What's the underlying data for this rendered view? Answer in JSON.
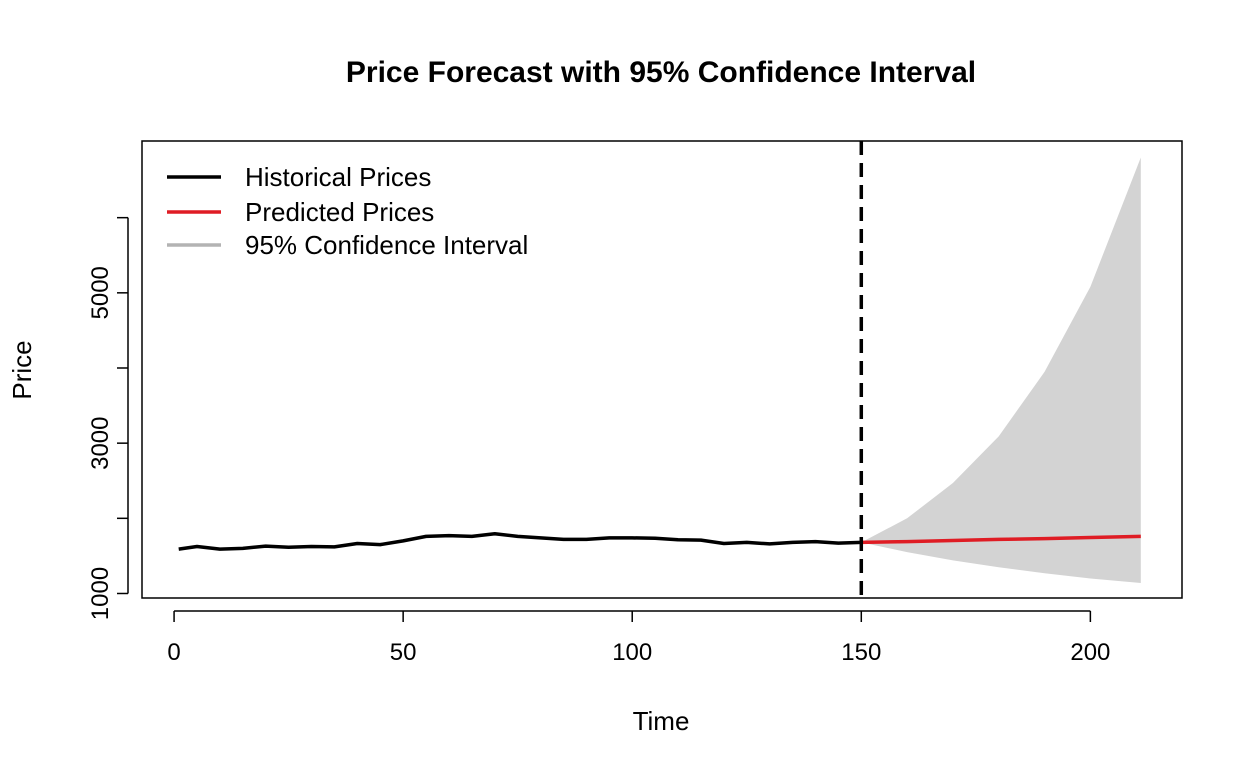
{
  "chart_data": {
    "type": "line",
    "title": "Price Forecast with 95% Confidence Interval",
    "xlabel": "Time",
    "ylabel": "Price",
    "xlim": [
      -7,
      220
    ],
    "ylim": [
      940,
      7020
    ],
    "x_ticks": [
      0,
      50,
      100,
      150,
      200
    ],
    "y_ticks": [
      1000,
      2000,
      3000,
      4000,
      5000,
      6000
    ],
    "y_tick_labels": [
      "1000",
      "",
      "3000",
      "",
      "5000",
      ""
    ],
    "forecast_start": 150,
    "legend": {
      "position": "top-left",
      "entries": [
        {
          "label": "Historical Prices",
          "color": "#000000"
        },
        {
          "label": "Predicted Prices",
          "color": "#DF1C24"
        },
        {
          "label": "95% Confidence Interval",
          "color": "#B3B3B3"
        }
      ]
    },
    "series": [
      {
        "name": "Historical Prices",
        "color": "#000000",
        "x": [
          1,
          5,
          10,
          15,
          20,
          25,
          30,
          35,
          40,
          45,
          50,
          55,
          60,
          65,
          70,
          75,
          80,
          85,
          90,
          95,
          100,
          105,
          110,
          115,
          120,
          125,
          130,
          135,
          140,
          145,
          150
        ],
        "y": [
          1590,
          1625,
          1590,
          1600,
          1630,
          1615,
          1625,
          1620,
          1665,
          1650,
          1700,
          1760,
          1770,
          1760,
          1795,
          1760,
          1740,
          1720,
          1720,
          1740,
          1740,
          1735,
          1715,
          1710,
          1665,
          1680,
          1660,
          1680,
          1690,
          1670,
          1680
        ]
      },
      {
        "name": "Predicted Prices",
        "color": "#DF1C24",
        "x": [
          150,
          160,
          170,
          180,
          190,
          200,
          211
        ],
        "y": [
          1680,
          1690,
          1705,
          1720,
          1730,
          1745,
          1760
        ]
      }
    ],
    "confidence_interval": {
      "name": "95% Confidence Interval",
      "color": "#D3D3D3",
      "x": [
        150,
        160,
        170,
        180,
        190,
        200,
        211
      ],
      "upper": [
        1680,
        2000,
        2470,
        3090,
        3950,
        5080,
        6800
      ],
      "lower": [
        1680,
        1550,
        1440,
        1350,
        1270,
        1200,
        1140
      ]
    }
  }
}
